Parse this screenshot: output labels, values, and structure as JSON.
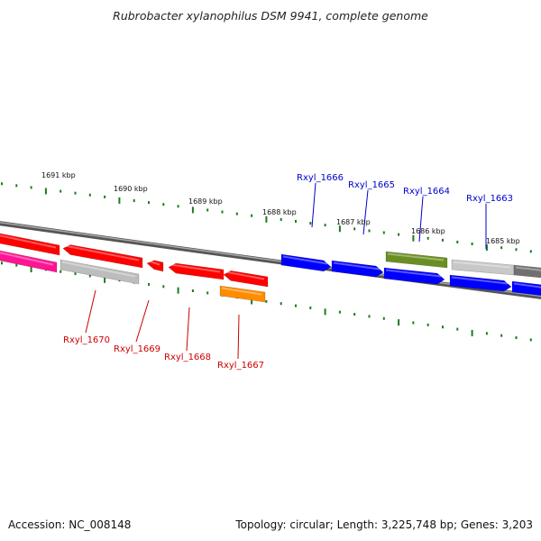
{
  "title": "Rubrobacter xylanophilus DSM 9941, complete genome",
  "footer": {
    "accession": "Accession: NC_008148",
    "summary": "Topology: circular; Length: 3,225,748 bp; Genes: 3,203"
  },
  "colors": {
    "backbone": "#7f7f7f",
    "tick": "#1e7a1e",
    "forward_label": "#0000cc",
    "reverse_label": "#cc0000"
  },
  "kbp_labels": [
    "1691 kbp",
    "1690 kbp",
    "1689 kbp",
    "1688 kbp",
    "1687 kbp",
    "1686 kbp",
    "1685 kbp"
  ],
  "gene_labels": [
    {
      "text": "Rxyl_1666",
      "strand": "forward"
    },
    {
      "text": "Rxyl_1665",
      "strand": "forward"
    },
    {
      "text": "Rxyl_1664",
      "strand": "forward"
    },
    {
      "text": "Rxyl_1663",
      "strand": "forward"
    },
    {
      "text": "Rxyl_1670",
      "strand": "reverse"
    },
    {
      "text": "Rxyl_1669",
      "strand": "reverse"
    },
    {
      "text": "Rxyl_1668",
      "strand": "reverse"
    },
    {
      "text": "Rxyl_1667",
      "strand": "reverse"
    }
  ],
  "features": [
    {
      "id": "rev-red-1",
      "color": "#ff0000",
      "strand": "reverse",
      "lane": "outer-reverse"
    },
    {
      "id": "rev-red-2",
      "color": "#ff0000",
      "strand": "reverse",
      "lane": "outer-reverse"
    },
    {
      "id": "rev-red-3",
      "color": "#ff0000",
      "strand": "reverse",
      "lane": "outer-reverse"
    },
    {
      "id": "rev-red-4",
      "color": "#ff0000",
      "strand": "reverse",
      "lane": "outer-reverse"
    },
    {
      "id": "rev-red-5",
      "color": "#ff0000",
      "strand": "reverse",
      "lane": "outer-reverse"
    },
    {
      "id": "rev-pink",
      "color": "#ff1493",
      "strand": "reverse",
      "lane": "inner-reverse"
    },
    {
      "id": "rev-gray",
      "color": "#bdbdbd",
      "strand": "reverse",
      "lane": "inner-reverse"
    },
    {
      "id": "rev-orange",
      "color": "#ff8c00",
      "strand": "reverse",
      "lane": "inner-reverse"
    },
    {
      "id": "fwd-blue-1",
      "color": "#0000ff",
      "strand": "forward",
      "lane": "forward"
    },
    {
      "id": "fwd-blue-2",
      "color": "#0000ff",
      "strand": "forward",
      "lane": "forward"
    },
    {
      "id": "fwd-blue-3",
      "color": "#0000ff",
      "strand": "forward",
      "lane": "forward"
    },
    {
      "id": "fwd-blue-4",
      "color": "#0000ff",
      "strand": "forward",
      "lane": "forward"
    },
    {
      "id": "fwd-blue-5",
      "color": "#0000ff",
      "strand": "forward",
      "lane": "forward"
    },
    {
      "id": "fwd-olive",
      "color": "#6b8e23",
      "strand": "forward",
      "lane": "outer-forward"
    },
    {
      "id": "fwd-gray-1",
      "color": "#c8c8c8",
      "strand": "forward",
      "lane": "outer-forward"
    },
    {
      "id": "fwd-gray-2",
      "color": "#707070",
      "strand": "forward",
      "lane": "outer-forward"
    }
  ]
}
